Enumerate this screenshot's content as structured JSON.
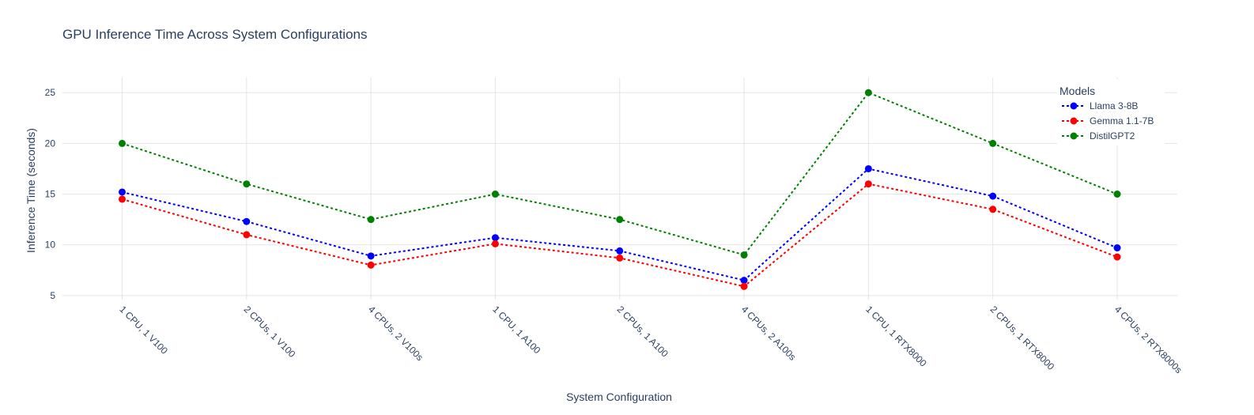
{
  "chart_data": {
    "type": "line",
    "title": "GPU Inference Time Across System Configurations",
    "xlabel": "System Configuration",
    "ylabel": "Inference Time (seconds)",
    "categories": [
      "1 CPU, 1 V100",
      "2 CPUs, 1 V100",
      "4 CPUs, 2 V100s",
      "1 CPU, 1 A100",
      "2 CPUs, 1 A100",
      "4 CPUs, 2 A100s",
      "1 CPU, 1 RTX8000",
      "2 CPUs, 1 RTX8000",
      "4 CPUs, 2 RTX8000s"
    ],
    "ylim": [
      4.6,
      26.5
    ],
    "yticks": [
      5,
      10,
      15,
      20,
      25
    ],
    "grid": true,
    "line_style": "dotted",
    "markers": true,
    "legend": {
      "title": "Models",
      "position": "top-right"
    },
    "series": [
      {
        "name": "Llama 3-8B",
        "color": "#0000ff",
        "values": [
          15.2,
          12.3,
          8.9,
          10.7,
          9.4,
          6.5,
          17.5,
          14.8,
          9.7
        ]
      },
      {
        "name": "Gemma 1.1-7B",
        "color": "#ff0000",
        "values": [
          14.5,
          11.0,
          8.0,
          10.1,
          8.7,
          5.9,
          16.0,
          13.5,
          8.8
        ]
      },
      {
        "name": "DistilGPT2",
        "color": "#008000",
        "values": [
          20.0,
          16.0,
          12.5,
          15.0,
          12.5,
          9.0,
          25.0,
          20.0,
          15.0
        ]
      }
    ]
  }
}
